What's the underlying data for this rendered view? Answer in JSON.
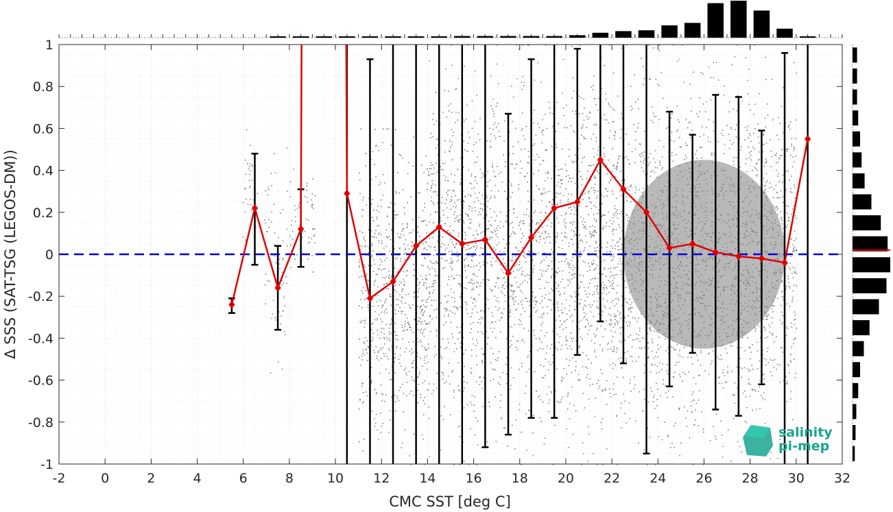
{
  "chart_data": {
    "type": "scatter",
    "xlabel": "CMC SST [deg C]",
    "ylabel": "Δ SSS (SAT-TSG (LEGOS-DM))",
    "xlim": [
      -2,
      32
    ],
    "ylim": [
      -1,
      1
    ],
    "xticks": [
      -2,
      0,
      2,
      4,
      6,
      8,
      10,
      12,
      14,
      16,
      18,
      20,
      22,
      24,
      26,
      28,
      30,
      32
    ],
    "yticks": [
      -1,
      -0.8,
      -0.6,
      -0.4,
      -0.2,
      0,
      0.2,
      0.4,
      0.6,
      0.8,
      1
    ],
    "xtick_labels": [
      "-2",
      "0",
      "2",
      "4",
      "6",
      "8",
      "10",
      "12",
      "14",
      "16",
      "18",
      "20",
      "22",
      "24",
      "26",
      "28",
      "30",
      "32"
    ],
    "ytick_labels": [
      "-1",
      "-0.8",
      "-0.6",
      "-0.4",
      "-0.2",
      "0",
      "0.2",
      "0.4",
      "0.6",
      "0.8",
      "1"
    ],
    "grid": true,
    "colors": {
      "points": "#808080",
      "mean_line": "#e00000",
      "zero_line": "#0000e0",
      "error_bars": "#000000",
      "histograms": "#000000"
    },
    "zero_line_y": 0,
    "binned_stats": {
      "x": [
        5.5,
        6.5,
        7.5,
        8.5,
        10.5,
        11.5,
        12.5,
        13.5,
        14.5,
        15.5,
        16.5,
        17.5,
        18.5,
        19.5,
        20.5,
        21.5,
        22.5,
        23.5,
        24.5,
        25.5,
        26.5,
        27.5,
        28.5,
        29.5,
        30.5
      ],
      "mean": [
        -0.24,
        0.22,
        -0.16,
        0.12,
        0.29,
        -0.21,
        -0.13,
        0.04,
        0.13,
        0.05,
        0.07,
        -0.09,
        0.08,
        0.22,
        0.25,
        0.45,
        0.31,
        0.2,
        0.03,
        0.05,
        0.01,
        -0.01,
        -0.02,
        -0.04,
        0.55
      ],
      "err_low": [
        -0.28,
        -0.05,
        -0.36,
        -0.06,
        -1.5,
        -1.5,
        -1.5,
        -1.5,
        -1.5,
        -1.5,
        -0.92,
        -0.86,
        -0.78,
        -0.78,
        -0.48,
        -0.32,
        -0.52,
        -0.95,
        -0.63,
        -0.47,
        -0.74,
        -0.77,
        -0.62,
        -1.2,
        -1.2
      ],
      "err_high": [
        -0.21,
        0.48,
        0.04,
        0.31,
        1.5,
        0.93,
        1.5,
        1.5,
        1.5,
        1.5,
        1.5,
        0.67,
        0.93,
        1.5,
        0.98,
        1.5,
        1.5,
        1.5,
        0.68,
        0.57,
        0.76,
        0.75,
        0.59,
        0.96,
        1.5
      ],
      "mean_off_scale_segment": [
        8.5,
        10.5
      ]
    },
    "scatter_clusters": [
      {
        "x_range": [
          5.9,
          6.6
        ],
        "y_range": [
          -0.05,
          0.62
        ],
        "density": 40
      },
      {
        "x_range": [
          6.9,
          7.9
        ],
        "y_range": [
          -0.6,
          0.55
        ],
        "density": 70
      },
      {
        "x_range": [
          8.0,
          9.1
        ],
        "y_range": [
          -0.1,
          0.45
        ],
        "density": 60
      },
      {
        "x_range": [
          11.0,
          14.0
        ],
        "y_range": [
          -1.0,
          0.6
        ],
        "density": 700
      },
      {
        "x_range": [
          14.0,
          20.0
        ],
        "y_range": [
          -1.0,
          1.0
        ],
        "density": 1500
      },
      {
        "x_range": [
          20.0,
          30.0
        ],
        "y_range": [
          -1.0,
          1.0
        ],
        "density": 3000
      }
    ],
    "x_histogram": {
      "bins": [
        7.5,
        8.5,
        9.5,
        10.5,
        11.5,
        12.5,
        13.5,
        14.5,
        15.5,
        16.5,
        17.5,
        18.5,
        19.5,
        20.5,
        21.5,
        22.5,
        23.5,
        24.5,
        25.5,
        26.5,
        27.5,
        28.5,
        29.5,
        30.5
      ],
      "counts": [
        0.01,
        0.01,
        0.005,
        0.005,
        0.005,
        0.01,
        0.01,
        0.01,
        0.02,
        0.02,
        0.02,
        0.02,
        0.02,
        0.03,
        0.06,
        0.08,
        0.09,
        0.15,
        0.18,
        0.42,
        0.45,
        0.33,
        0.11,
        0.01
      ]
    },
    "y_histogram": {
      "bins": [
        0.95,
        0.85,
        0.75,
        0.65,
        0.55,
        0.45,
        0.35,
        0.25,
        0.15,
        0.05,
        -0.05,
        -0.15,
        -0.25,
        -0.35,
        -0.45,
        -0.55,
        -0.65,
        -0.75,
        -0.85,
        -0.95
      ],
      "counts": [
        0.12,
        0.12,
        0.12,
        0.15,
        0.2,
        0.24,
        0.32,
        0.5,
        0.75,
        0.93,
        1.0,
        0.9,
        0.7,
        0.45,
        0.3,
        0.2,
        0.15,
        0.1,
        0.08,
        0.06
      ],
      "mean_marker_y": 0.02
    }
  },
  "logo": {
    "line1": "salinity",
    "line2": "pi-mep",
    "color": "#16a58e"
  }
}
